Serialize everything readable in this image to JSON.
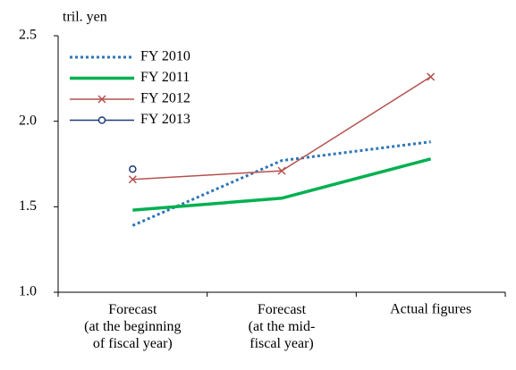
{
  "chart_data": {
    "type": "line",
    "y_axis_label": "tril. yen",
    "categories": [
      "Forecast\n(at the beginning\nof fiscal year)",
      "Forecast\n(at the mid-\nfiscal year)",
      "Actual figures"
    ],
    "series": [
      {
        "name": "FY 2010",
        "color": "#2e75b6",
        "style": "dotted",
        "marker": "none",
        "values": [
          1.39,
          1.77,
          1.88
        ]
      },
      {
        "name": "FY 2011",
        "color": "#00b050",
        "style": "solid",
        "marker": "none",
        "values": [
          1.48,
          1.55,
          1.78
        ]
      },
      {
        "name": "FY 2012",
        "color": "#b5524f",
        "style": "solid",
        "marker": "x",
        "values": [
          1.66,
          1.71,
          2.26
        ]
      },
      {
        "name": "FY 2013",
        "color": "#1f3b7a",
        "style": "solid",
        "marker": "circle",
        "values": [
          1.72,
          null,
          null
        ]
      }
    ],
    "ylim": [
      1.0,
      2.5
    ],
    "yticks": [
      {
        "value": 1.0,
        "label": "1.0"
      },
      1.5,
      {
        "value": 2.0,
        "label": "2.0"
      },
      {
        "value": 2.5,
        "label": "2.5"
      }
    ],
    "grid": false,
    "legend": "top-left"
  }
}
